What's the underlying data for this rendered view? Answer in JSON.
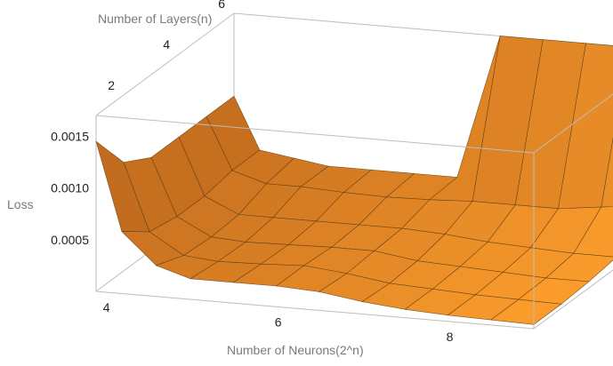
{
  "chart_data": {
    "type": "surface3d",
    "title": "",
    "xlabel": "Number of Neurons(2^n)",
    "ylabel": "Number of Layers(n)",
    "zlabel": "Loss",
    "x_ticks": [
      "4",
      "6",
      "8"
    ],
    "y_ticks": [
      "2",
      "4",
      "6"
    ],
    "z_ticks": [
      "0.0005",
      "0.0010",
      "0.0015"
    ],
    "xlim": [
      3.9,
      9.0
    ],
    "ylim": [
      1,
      6
    ],
    "zlim": [
      0,
      0.0017
    ],
    "clipped_at": 0.0017,
    "grid": [
      {
        "x": 3.9,
        "loss": [
          0.00145,
          0.00105,
          0.0009,
          0.0009,
          0.0009,
          0.0009
        ]
      },
      {
        "x": 4.2,
        "loss": [
          0.0006,
          0.0004,
          0.00035,
          0.00035,
          0.0004,
          0.0004
        ]
      },
      {
        "x": 4.6,
        "loss": [
          0.0003,
          0.0002,
          0.00018,
          0.0002,
          0.0003,
          0.00035
        ]
      },
      {
        "x": 5.0,
        "loss": [
          0.0002,
          0.00017,
          0.00016,
          0.0002,
          0.0003,
          0.0003
        ]
      },
      {
        "x": 5.5,
        "loss": [
          0.0002,
          0.00018,
          0.00017,
          0.0002,
          0.00028,
          0.0003
        ]
      },
      {
        "x": 6.0,
        "loss": [
          0.0002,
          0.0002,
          0.00018,
          0.0002,
          0.00027,
          0.0003
        ]
      },
      {
        "x": 6.5,
        "loss": [
          0.00018,
          0.00016,
          0.00018,
          0.0002,
          0.00028,
          0.0003
        ]
      },
      {
        "x": 7.0,
        "loss": [
          0.00012,
          0.0001,
          0.00012,
          0.00018,
          0.0003,
          0.0017
        ]
      },
      {
        "x": 7.5,
        "loss": [
          8e-05,
          8e-05,
          0.0001,
          0.00014,
          0.0003,
          0.0017
        ]
      },
      {
        "x": 8.0,
        "loss": [
          6e-05,
          6e-05,
          8e-05,
          0.00012,
          0.0003,
          0.0017
        ]
      },
      {
        "x": 8.5,
        "loss": [
          5e-05,
          5e-05,
          6e-05,
          0.0001,
          0.00035,
          0.0017
        ]
      },
      {
        "x": 9.0,
        "loss": [
          4e-05,
          4e-05,
          6e-05,
          0.0001,
          0.0004,
          0.0017
        ]
      }
    ],
    "y_values": [
      1,
      2,
      3,
      4,
      5,
      6
    ]
  }
}
